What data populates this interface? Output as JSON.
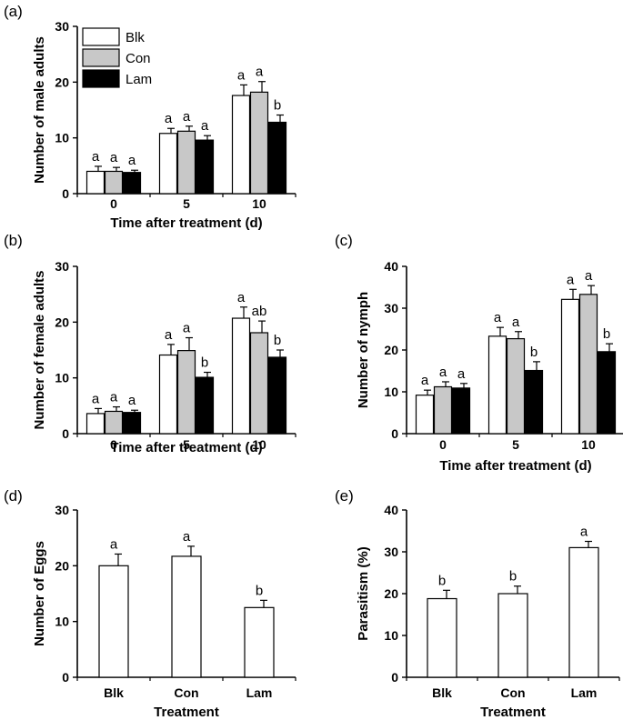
{
  "colors": {
    "Blk": "#ffffff",
    "Con": "#c8c8c8",
    "Lam": "#000000"
  },
  "legend": [
    "Blk",
    "Con",
    "Lam"
  ],
  "chart_data": [
    {
      "panel": "(a)",
      "type": "bar",
      "title": "",
      "xlabel": "Time after treatment (d)",
      "ylabel": "Number of male adults",
      "ylim": [
        0,
        30
      ],
      "yticks": [
        0,
        10,
        20,
        30
      ],
      "categories": [
        "0",
        "5",
        "10"
      ],
      "legend_position": "top-left",
      "series": [
        {
          "name": "Blk",
          "values": [
            4.0,
            10.8,
            17.6
          ],
          "errors": [
            0.9,
            0.9,
            1.9
          ],
          "labels": [
            "a",
            "a",
            "a"
          ]
        },
        {
          "name": "Con",
          "values": [
            4.0,
            11.2,
            18.2
          ],
          "errors": [
            0.7,
            0.9,
            1.9
          ],
          "labels": [
            "a",
            "a",
            "a"
          ]
        },
        {
          "name": "Lam",
          "values": [
            3.8,
            9.6,
            12.8
          ],
          "errors": [
            0.4,
            0.8,
            1.3
          ],
          "labels": [
            "a",
            "a",
            "b"
          ]
        }
      ]
    },
    {
      "panel": "(b)",
      "type": "bar",
      "title": "",
      "xlabel": "Time after treatment (d)",
      "ylabel": "Number of female adults",
      "ylim": [
        0,
        30
      ],
      "yticks": [
        0,
        10,
        20,
        30
      ],
      "categories": [
        "0",
        "5",
        "10"
      ],
      "series": [
        {
          "name": "Blk",
          "values": [
            3.6,
            14.1,
            20.7
          ],
          "errors": [
            0.9,
            1.9,
            2.0
          ],
          "labels": [
            "a",
            "a",
            "a"
          ]
        },
        {
          "name": "Con",
          "values": [
            4.0,
            14.9,
            18.1
          ],
          "errors": [
            0.8,
            2.3,
            2.1
          ],
          "labels": [
            "a",
            "a",
            "ab"
          ]
        },
        {
          "name": "Lam",
          "values": [
            3.8,
            10.1,
            13.7
          ],
          "errors": [
            0.4,
            0.9,
            1.3
          ],
          "labels": [
            "a",
            "b",
            "b"
          ]
        }
      ]
    },
    {
      "panel": "(c)",
      "type": "bar",
      "title": "",
      "xlabel": "Time after treatment (d)",
      "ylabel": "Number of nymph",
      "ylim": [
        0,
        40
      ],
      "yticks": [
        0,
        10,
        20,
        30,
        40
      ],
      "categories": [
        "0",
        "5",
        "10"
      ],
      "series": [
        {
          "name": "Blk",
          "values": [
            9.2,
            23.3,
            32.1
          ],
          "errors": [
            1.2,
            2.1,
            2.4
          ],
          "labels": [
            "a",
            "a",
            "a"
          ]
        },
        {
          "name": "Con",
          "values": [
            11.2,
            22.7,
            33.3
          ],
          "errors": [
            1.2,
            1.7,
            2.1
          ],
          "labels": [
            "a",
            "a",
            "a"
          ]
        },
        {
          "name": "Lam",
          "values": [
            10.9,
            15.1,
            19.6
          ],
          "errors": [
            1.1,
            2.1,
            1.9
          ],
          "labels": [
            "a",
            "b",
            "b"
          ]
        }
      ]
    },
    {
      "panel": "(d)",
      "type": "bar",
      "title": "",
      "xlabel": "Treatment",
      "ylabel": "Number of Eggs",
      "ylim": [
        0,
        30
      ],
      "yticks": [
        0,
        10,
        20,
        30
      ],
      "categories": [
        "Blk",
        "Con",
        "Lam"
      ],
      "series": [
        {
          "name": "Eggs",
          "values": [
            20.0,
            21.7,
            12.5
          ],
          "errors": [
            2.1,
            1.8,
            1.3
          ],
          "labels": [
            "a",
            "a",
            "b"
          ]
        }
      ]
    },
    {
      "panel": "(e)",
      "type": "bar",
      "title": "",
      "xlabel": "Treatment",
      "ylabel": "Parasitism  (%)",
      "ylim": [
        0,
        40
      ],
      "yticks": [
        0,
        10,
        20,
        30,
        40
      ],
      "categories": [
        "Blk",
        "Con",
        "Lam"
      ],
      "series": [
        {
          "name": "Parasitism",
          "values": [
            18.8,
            20.0,
            31.0
          ],
          "errors": [
            2.0,
            1.8,
            1.5
          ],
          "labels": [
            "b",
            "b",
            "a"
          ]
        }
      ]
    }
  ]
}
